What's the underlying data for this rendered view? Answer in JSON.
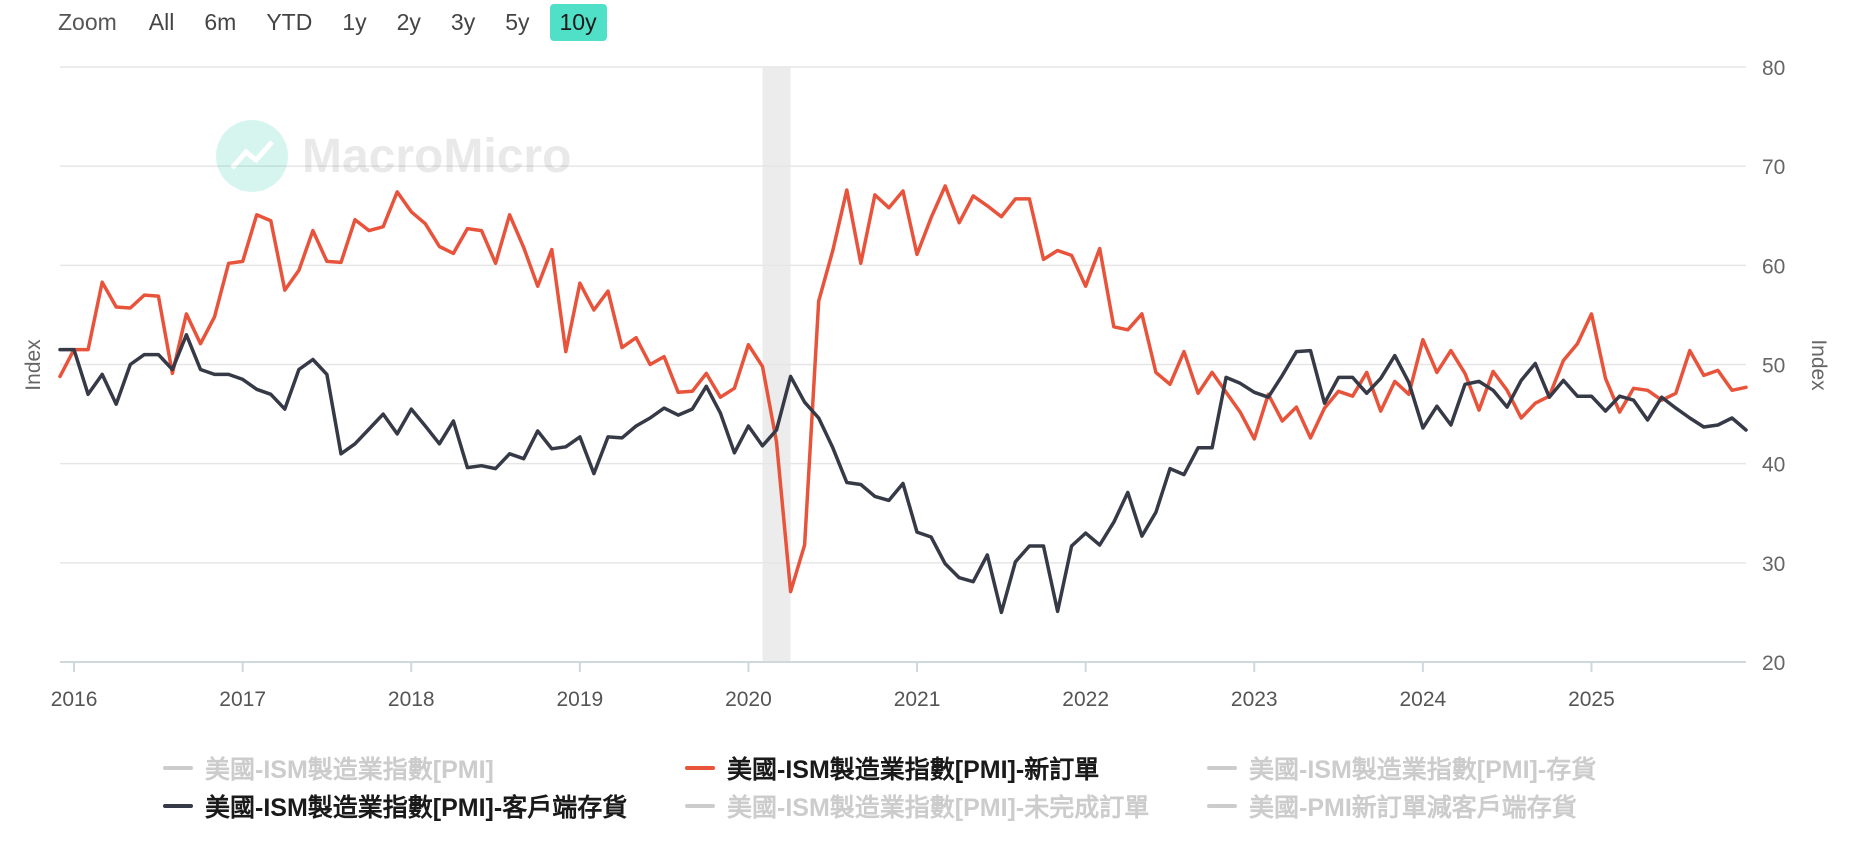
{
  "zoom": {
    "label": "Zoom",
    "buttons": [
      "All",
      "6m",
      "YTD",
      "1y",
      "2y",
      "3y",
      "5y",
      "10y"
    ],
    "active": "10y"
  },
  "watermark": "MacroMicro",
  "colors": {
    "new_orders": "#e8543b",
    "customer_inventories": "#363a47",
    "grid": "#e6e6e6",
    "recession": "#ececec",
    "inactive": "#cccccc",
    "zoom_active": "#4fe0c7"
  },
  "legend": [
    {
      "label": "美國-ISM製造業指數[PMI]",
      "active": false,
      "color": "#cccccc"
    },
    {
      "label": "美國-ISM製造業指數[PMI]-新訂單",
      "active": true,
      "color": "#e8543b"
    },
    {
      "label": "美國-ISM製造業指數[PMI]-存貨",
      "active": false,
      "color": "#cccccc"
    },
    {
      "label": "美國-ISM製造業指數[PMI]-客戶端存貨",
      "active": true,
      "color": "#363a47"
    },
    {
      "label": "美國-ISM製造業指數[PMI]-未完成訂單",
      "active": false,
      "color": "#cccccc"
    },
    {
      "label": "美國-PMI新訂單減客戶端存貨",
      "active": false,
      "color": "#cccccc"
    }
  ],
  "chart_data": {
    "type": "line",
    "title": "",
    "ylabel_left": "Index",
    "ylabel_right": "Index",
    "ylim": [
      20,
      80
    ],
    "yticks": [
      20,
      30,
      40,
      50,
      60,
      70,
      80
    ],
    "xlim": [
      "2015-12",
      "2025-12"
    ],
    "xticks": [
      "2016",
      "2017",
      "2018",
      "2019",
      "2020",
      "2021",
      "2022",
      "2023",
      "2024",
      "2025"
    ],
    "grid": true,
    "legend_position": "bottom",
    "shaded_period": {
      "start": "2020-02",
      "end": "2020-04"
    },
    "x_start": "2015-12",
    "x_step": "1 month",
    "series": [
      {
        "name": "美國-ISM製造業指數[PMI]-新訂單",
        "color": "#e8543b",
        "values": [
          48.8,
          51.5,
          51.5,
          58.3,
          55.8,
          55.7,
          57.0,
          56.9,
          49.1,
          55.1,
          52.1,
          54.8,
          60.2,
          60.4,
          65.1,
          64.5,
          57.5,
          59.5,
          63.5,
          60.4,
          60.3,
          64.6,
          63.5,
          63.9,
          67.4,
          65.4,
          64.2,
          61.9,
          61.2,
          63.7,
          63.5,
          60.2,
          65.1,
          61.8,
          57.9,
          61.6,
          51.3,
          58.2,
          55.5,
          57.4,
          51.7,
          52.7,
          50.0,
          50.8,
          47.2,
          47.3,
          49.1,
          46.7,
          47.6,
          52.0,
          49.8,
          42.2,
          27.1,
          31.8,
          56.4,
          61.5,
          67.6,
          60.2,
          67.1,
          65.8,
          67.5,
          61.1,
          64.8,
          68.0,
          64.3,
          67.0,
          66.0,
          64.9,
          66.7,
          66.7,
          60.6,
          61.5,
          61.0,
          57.9,
          61.7,
          53.8,
          53.5,
          55.1,
          49.2,
          48.0,
          51.3,
          47.1,
          49.2,
          47.2,
          45.2,
          42.5,
          47.0,
          44.3,
          45.7,
          42.6,
          45.6,
          47.3,
          46.8,
          49.2,
          45.3,
          48.3,
          47.0,
          52.5,
          49.2,
          51.4,
          49.1,
          45.4,
          49.3,
          47.4,
          44.6,
          46.1,
          46.8,
          50.4,
          52.1,
          55.1,
          48.6,
          45.2,
          47.6,
          47.4,
          46.4,
          47.1,
          51.4,
          48.9,
          49.4,
          47.4,
          47.7
        ]
      },
      {
        "name": "美國-ISM製造業指數[PMI]-客戶端存貨",
        "color": "#363a47",
        "values": [
          51.5,
          51.5,
          47.0,
          49.0,
          46.0,
          50.0,
          51.0,
          51.0,
          49.5,
          53.0,
          49.5,
          49.0,
          49.0,
          48.5,
          47.5,
          47.0,
          45.5,
          49.5,
          50.5,
          49.0,
          41.0,
          42.0,
          43.5,
          45.0,
          43.0,
          45.5,
          43.8,
          42.0,
          44.3,
          39.6,
          39.8,
          39.5,
          41.0,
          40.5,
          43.3,
          41.5,
          41.7,
          42.7,
          39.0,
          42.7,
          42.6,
          43.8,
          44.6,
          45.6,
          44.9,
          45.5,
          47.8,
          45.1,
          41.1,
          43.8,
          41.8,
          43.4,
          48.8,
          46.2,
          44.6,
          41.6,
          38.1,
          37.9,
          36.7,
          36.3,
          38.0,
          33.1,
          32.6,
          29.9,
          28.5,
          28.1,
          30.8,
          25.0,
          30.1,
          31.7,
          31.7,
          25.1,
          31.7,
          33.0,
          31.8,
          34.1,
          37.1,
          32.7,
          35.1,
          39.5,
          38.9,
          41.6,
          41.6,
          48.7,
          48.1,
          47.2,
          46.7,
          48.9,
          51.3,
          51.4,
          46.1,
          48.7,
          48.7,
          47.1,
          48.6,
          50.9,
          48.2,
          43.6,
          45.8,
          43.9,
          48.0,
          48.3,
          47.4,
          45.7,
          48.4,
          50.1,
          46.7,
          48.4,
          46.8,
          46.8,
          45.3,
          46.8,
          46.4,
          44.4,
          46.7,
          45.6,
          44.6,
          43.7,
          43.9,
          44.6,
          43.4
        ]
      }
    ]
  }
}
